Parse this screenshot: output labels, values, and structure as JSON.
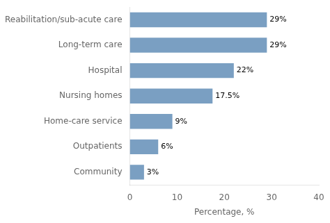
{
  "chart_data": {
    "type": "bar",
    "orientation": "horizontal",
    "categories": [
      "Community",
      "Outpatients",
      "Home-care service",
      "Nursing homes",
      "Hospital",
      "Long-term care",
      "Reabilitation/sub-acute care"
    ],
    "values": [
      3,
      6,
      9,
      17.5,
      22,
      29,
      29
    ],
    "value_labels": [
      "3%",
      "6%",
      "9%",
      "17.5%",
      "22%",
      "29%",
      "29%"
    ],
    "color": "#7a9fc2",
    "xlabel": "Percentage, %",
    "xlim": [
      0,
      40
    ],
    "xticks": [
      0,
      10,
      20,
      30,
      40
    ],
    "grid": false,
    "data_labels": true
  }
}
